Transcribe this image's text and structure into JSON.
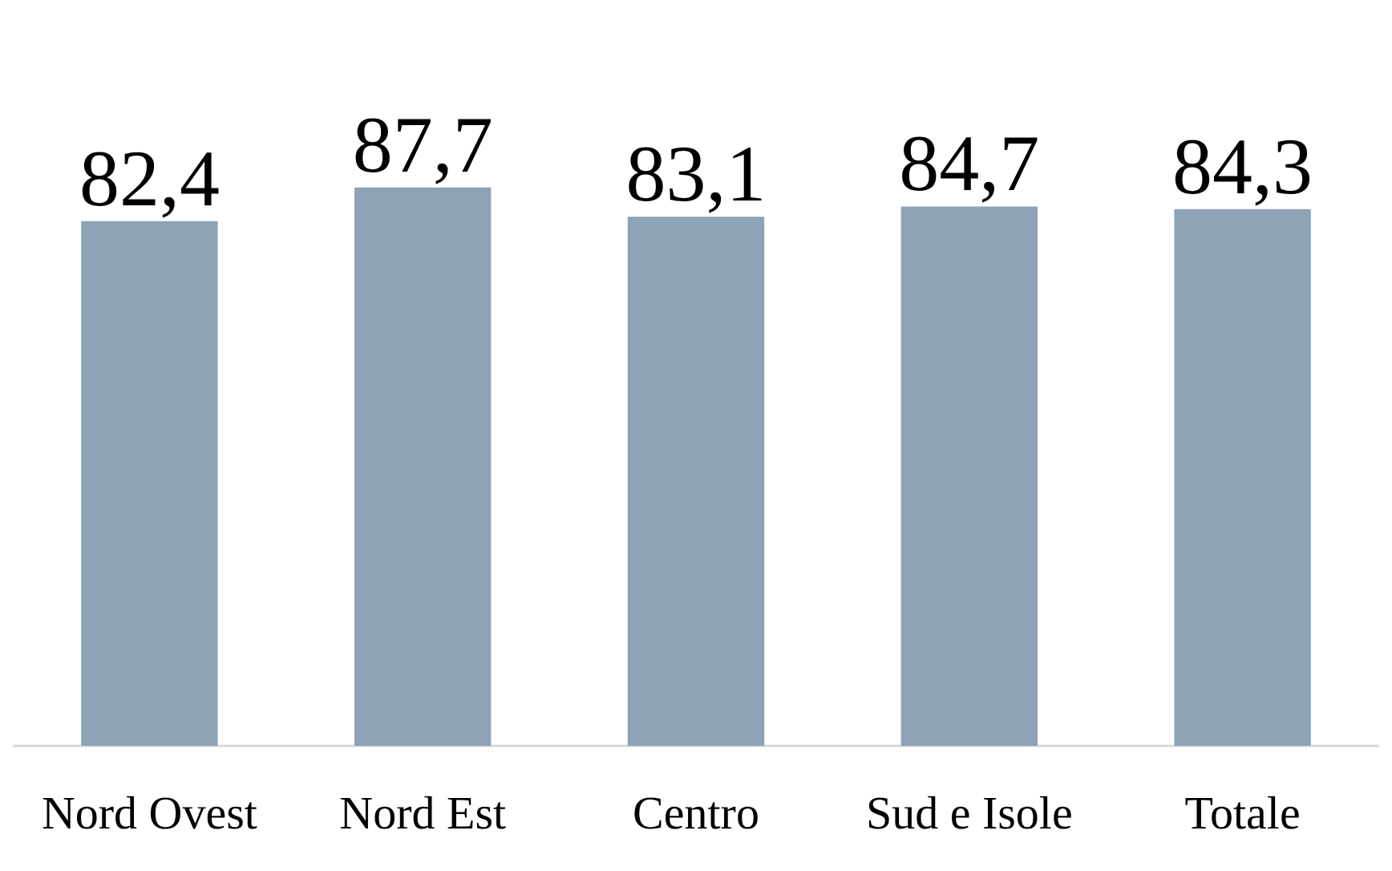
{
  "chart_data": {
    "type": "bar",
    "categories": [
      "Nord Ovest",
      "Nord Est",
      "Centro",
      "Sud e Isole",
      "Totale"
    ],
    "values": [
      82.4,
      87.7,
      83.1,
      84.7,
      84.3
    ],
    "value_labels": [
      "82,4",
      "87,7",
      "83,1",
      "84,7",
      "84,3"
    ],
    "color": "#8fa3b7",
    "tick_labels": "x",
    "grid": false
  }
}
